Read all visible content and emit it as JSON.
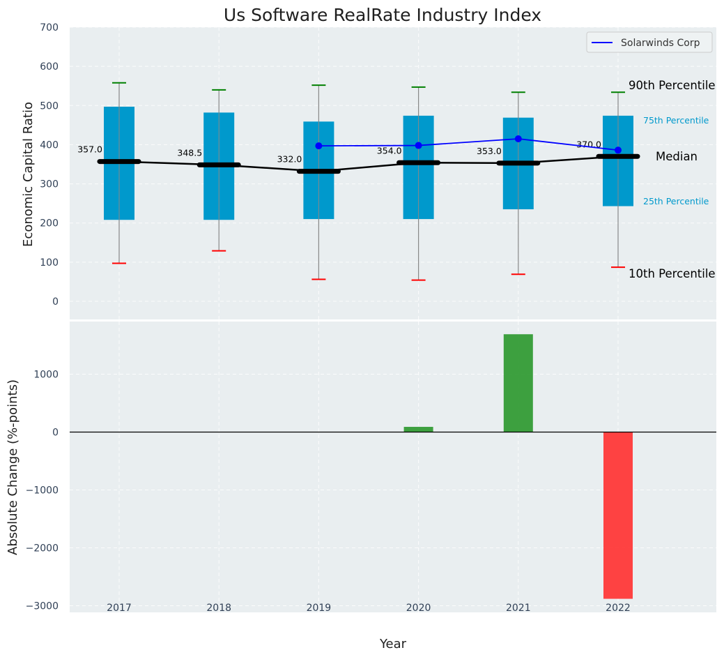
{
  "chart_data": [
    {
      "type": "box",
      "title": "Us Software RealRate Industry Index",
      "ylabel": "Economic Capital Ratio",
      "ylim": [
        -50,
        700
      ],
      "yticks": [
        0,
        100,
        200,
        300,
        400,
        500,
        600,
        700
      ],
      "categories": [
        "2017",
        "2018",
        "2019",
        "2020",
        "2021",
        "2022"
      ],
      "p10": [
        97,
        129,
        56,
        54,
        69,
        87
      ],
      "p25": [
        208,
        208,
        210,
        210,
        235,
        243
      ],
      "median": [
        357.0,
        348.5,
        332.0,
        354.0,
        353.0,
        370.0
      ],
      "median_labels": [
        "357.0",
        "348.5",
        "332.0",
        "354.0",
        "353.0",
        "370.0"
      ],
      "p75": [
        497,
        482,
        459,
        474,
        469,
        474
      ],
      "p90": [
        558,
        540,
        552,
        547,
        534,
        534
      ],
      "company_series": {
        "name": "Solarwinds Corp",
        "x": [
          "2019",
          "2020",
          "2021",
          "2022"
        ],
        "values": [
          397,
          398,
          415,
          386
        ]
      },
      "annotations": {
        "p90": "90th Percentile",
        "p75": "75th Percentile",
        "median": "Median",
        "p25": "25th Percentile",
        "p10": "10th Percentile"
      },
      "legend_position": "top-right",
      "grid": true
    },
    {
      "type": "bar",
      "ylabel": "Absolute Change (%-points)",
      "xlabel": "Year",
      "ylim": [
        -3100,
        1900
      ],
      "yticks": [
        -3000,
        -2000,
        -1000,
        0,
        1000
      ],
      "ytick_labels": [
        "−3000",
        "−2000",
        "−1000",
        "0",
        "1000"
      ],
      "categories": [
        "2017",
        "2018",
        "2019",
        "2020",
        "2021",
        "2022"
      ],
      "values": [
        0,
        0,
        0,
        90,
        1690,
        -2880
      ],
      "grid": true
    }
  ],
  "colors": {
    "background": "#e9eef0",
    "box_fill": "#0099cc",
    "whisker": "#888888",
    "p90_cap": "#008000",
    "p10_cap": "#ff0000",
    "median_line": "#000000",
    "company_line": "#0000ff",
    "bar_positive": "#2e9930",
    "bar_negative": "#ff3333"
  }
}
